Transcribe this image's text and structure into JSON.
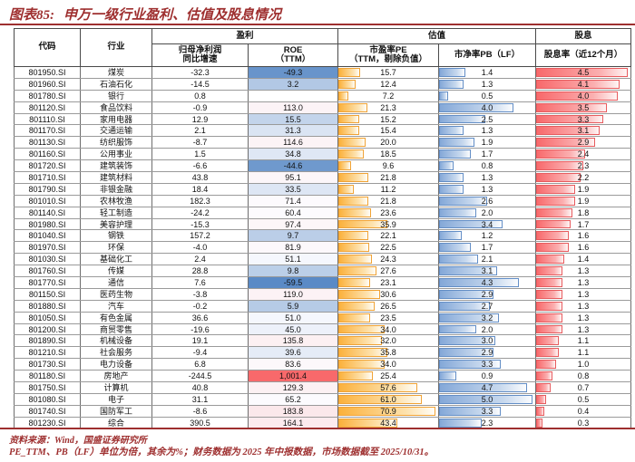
{
  "title": {
    "label": "图表85:",
    "text": "申万一级行业盈利、估值及股息情况"
  },
  "header": {
    "code": "代码",
    "industry": "行业",
    "groups": {
      "profit": "盈利",
      "valuation": "估值",
      "dividend": "股息"
    },
    "growth_line1": "归母净利润",
    "growth_line2": "同比增速",
    "roe_line1": "ROE",
    "roe_line2": "（TTM）",
    "pe_line1": "市盈率PE",
    "pe_line2": "（TTM，剔除负值）",
    "pb": "市净率PB（LF）",
    "dividend": "股息率（近12个月）"
  },
  "colors": {
    "accent_red": "#9E2F2F",
    "text": "#111111"
  },
  "chart_data": {
    "type": "table",
    "title": "申万一级行业盈利、估值及股息情况",
    "columns": [
      "代码",
      "行业",
      "归母净利润同比增速(%)",
      "ROE(TTM)(%)",
      "市盈率PE(TTM,剔除负值,倍)",
      "市净率PB(LF,倍)",
      "股息率(近12个月,%)"
    ],
    "color_scale": {
      "applies_to": "roe",
      "min_value": -59.5,
      "mid_value": 55.75,
      "max_value": 1001.4,
      "min_color": "#5A8AC6",
      "mid_color": "#FCFCFF",
      "max_color": "#F8696B"
    },
    "data_bars": {
      "pe": {
        "max": 70.9,
        "fill": "#FBB13C",
        "border": "#F0A336"
      },
      "pb": {
        "max": 5.0,
        "fill": "#84A8D8",
        "border": "#638EC6"
      },
      "div": {
        "max": 4.5,
        "fill": "#F8696B",
        "border": "#E75B5E"
      }
    },
    "rows": [
      {
        "code": "801950.SI",
        "industry": "煤炭",
        "growth": "-32.3",
        "roe": "-49.3",
        "pe": "15.7",
        "pb": "1.4",
        "div": "4.5"
      },
      {
        "code": "801960.SI",
        "industry": "石油石化",
        "growth": "-14.5",
        "roe": "3.2",
        "pe": "12.4",
        "pb": "1.3",
        "div": "4.1"
      },
      {
        "code": "801780.SI",
        "industry": "银行",
        "growth": "0.8",
        "roe": "",
        "pe": "7.2",
        "pb": "0.5",
        "div": "4.0"
      },
      {
        "code": "801120.SI",
        "industry": "食品饮料",
        "growth": "-0.9",
        "roe": "113.0",
        "pe": "21.3",
        "pb": "4.0",
        "div": "3.5"
      },
      {
        "code": "801110.SI",
        "industry": "家用电器",
        "growth": "12.9",
        "roe": "15.5",
        "pe": "15.2",
        "pb": "2.5",
        "div": "3.3"
      },
      {
        "code": "801170.SI",
        "industry": "交通运输",
        "growth": "2.1",
        "roe": "31.3",
        "pe": "15.4",
        "pb": "1.3",
        "div": "3.1"
      },
      {
        "code": "801130.SI",
        "industry": "纺织服饰",
        "growth": "-8.7",
        "roe": "114.6",
        "pe": "20.0",
        "pb": "1.9",
        "div": "2.9"
      },
      {
        "code": "801160.SI",
        "industry": "公用事业",
        "growth": "1.5",
        "roe": "34.8",
        "pe": "18.5",
        "pb": "1.7",
        "div": "2.4"
      },
      {
        "code": "801720.SI",
        "industry": "建筑装饰",
        "growth": "-6.6",
        "roe": "-44.6",
        "pe": "9.6",
        "pb": "0.8",
        "div": "2.3"
      },
      {
        "code": "801710.SI",
        "industry": "建筑材料",
        "growth": "43.8",
        "roe": "95.1",
        "pe": "21.8",
        "pb": "1.3",
        "div": "2.2"
      },
      {
        "code": "801790.SI",
        "industry": "非银金融",
        "growth": "18.4",
        "roe": "33.5",
        "pe": "11.2",
        "pb": "1.3",
        "div": "1.9"
      },
      {
        "code": "801010.SI",
        "industry": "农林牧渔",
        "growth": "182.3",
        "roe": "71.4",
        "pe": "21.8",
        "pb": "2.6",
        "div": "1.9"
      },
      {
        "code": "801140.SI",
        "industry": "轻工制造",
        "growth": "-24.2",
        "roe": "60.4",
        "pe": "23.6",
        "pb": "2.0",
        "div": "1.8"
      },
      {
        "code": "801980.SI",
        "industry": "美容护理",
        "growth": "-15.3",
        "roe": "97.4",
        "pe": "35.9",
        "pb": "3.4",
        "div": "1.7"
      },
      {
        "code": "801040.SI",
        "industry": "钢铁",
        "growth": "157.2",
        "roe": "9.7",
        "pe": "22.1",
        "pb": "1.2",
        "div": "1.6"
      },
      {
        "code": "801970.SI",
        "industry": "环保",
        "growth": "-4.0",
        "roe": "81.9",
        "pe": "22.5",
        "pb": "1.7",
        "div": "1.6"
      },
      {
        "code": "801030.SI",
        "industry": "基础化工",
        "growth": "2.4",
        "roe": "51.1",
        "pe": "24.3",
        "pb": "2.1",
        "div": "1.4"
      },
      {
        "code": "801760.SI",
        "industry": "传媒",
        "growth": "28.8",
        "roe": "9.8",
        "pe": "27.6",
        "pb": "3.1",
        "div": "1.3"
      },
      {
        "code": "801770.SI",
        "industry": "通信",
        "growth": "7.6",
        "roe": "-59.5",
        "pe": "23.1",
        "pb": "4.3",
        "div": "1.3"
      },
      {
        "code": "801150.SI",
        "industry": "医药生物",
        "growth": "-3.8",
        "roe": "119.0",
        "pe": "30.6",
        "pb": "2.9",
        "div": "1.3"
      },
      {
        "code": "801880.SI",
        "industry": "汽车",
        "growth": "-0.2",
        "roe": "5.9",
        "pe": "26.5",
        "pb": "2.7",
        "div": "1.3"
      },
      {
        "code": "801050.SI",
        "industry": "有色金属",
        "growth": "36.6",
        "roe": "51.0",
        "pe": "23.5",
        "pb": "3.2",
        "div": "1.3"
      },
      {
        "code": "801200.SI",
        "industry": "商贸零售",
        "growth": "-19.6",
        "roe": "45.0",
        "pe": "34.0",
        "pb": "2.0",
        "div": "1.3"
      },
      {
        "code": "801890.SI",
        "industry": "机械设备",
        "growth": "19.1",
        "roe": "135.8",
        "pe": "32.0",
        "pb": "3.0",
        "div": "1.1"
      },
      {
        "code": "801210.SI",
        "industry": "社会服务",
        "growth": "-9.4",
        "roe": "39.6",
        "pe": "35.8",
        "pb": "2.9",
        "div": "1.1"
      },
      {
        "code": "801730.SI",
        "industry": "电力设备",
        "growth": "6.8",
        "roe": "83.6",
        "pe": "34.0",
        "pb": "3.3",
        "div": "1.0"
      },
      {
        "code": "801180.SI",
        "industry": "房地产",
        "growth": "-244.5",
        "roe": "1,001.4",
        "pe": "25.4",
        "pb": "0.9",
        "div": "0.8"
      },
      {
        "code": "801750.SI",
        "industry": "计算机",
        "growth": "40.8",
        "roe": "129.3",
        "pe": "57.6",
        "pb": "4.7",
        "div": "0.7"
      },
      {
        "code": "801080.SI",
        "industry": "电子",
        "growth": "31.1",
        "roe": "65.2",
        "pe": "61.0",
        "pb": "5.0",
        "div": "0.5"
      },
      {
        "code": "801740.SI",
        "industry": "国防军工",
        "growth": "-8.6",
        "roe": "183.8",
        "pe": "70.9",
        "pb": "3.3",
        "div": "0.4"
      },
      {
        "code": "801230.SI",
        "industry": "综合",
        "growth": "390.5",
        "roe": "164.1",
        "pe": "43.4",
        "pb": "2.3",
        "div": "0.3"
      }
    ]
  },
  "footer": {
    "source": "资料来源：Wind，国盛证券研究所",
    "note": "PE_TTM、PB（LF）单位为倍，其余为%；财务数据为 2025 年中报数据，市场数据截至 2025/10/31。"
  }
}
